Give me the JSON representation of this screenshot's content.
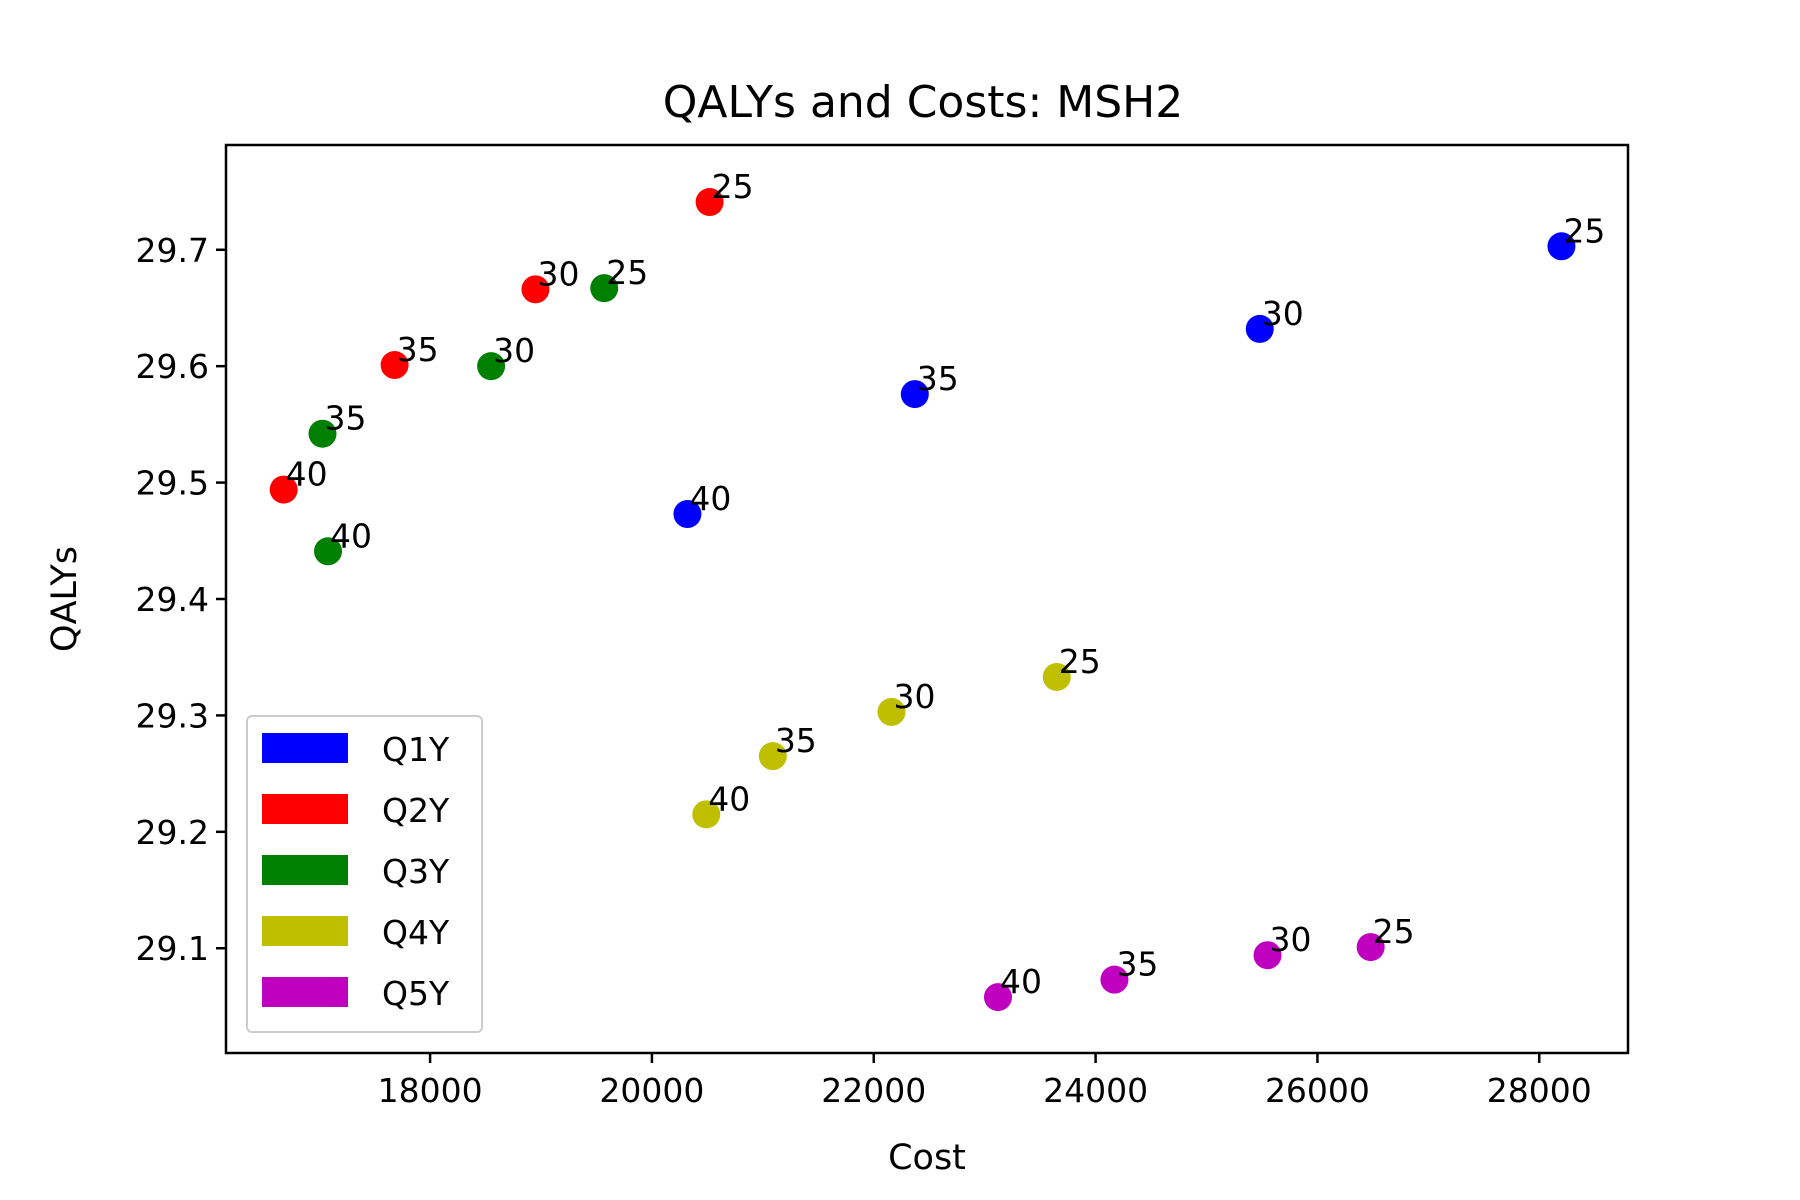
{
  "chart_data": {
    "type": "scatter",
    "title": "QALYs and Costs: MSH2",
    "xlabel": "Cost",
    "ylabel": "QALYs",
    "xlim": [
      16160,
      28800
    ],
    "ylim": [
      29.01,
      29.79
    ],
    "xticks": [
      {
        "value": 18000,
        "label": "18000"
      },
      {
        "value": 20000,
        "label": "20000"
      },
      {
        "value": 22000,
        "label": "22000"
      },
      {
        "value": 24000,
        "label": "24000"
      },
      {
        "value": 26000,
        "label": "26000"
      },
      {
        "value": 28000,
        "label": "28000"
      }
    ],
    "yticks": [
      {
        "value": 29.1,
        "label": "29.1"
      },
      {
        "value": 29.2,
        "label": "29.2"
      },
      {
        "value": 29.3,
        "label": "29.3"
      },
      {
        "value": 29.4,
        "label": "29.4"
      },
      {
        "value": 29.5,
        "label": "29.5"
      },
      {
        "value": 29.6,
        "label": "29.6"
      },
      {
        "value": 29.7,
        "label": "29.7"
      }
    ],
    "grid": false,
    "legend_position": "lower-left",
    "series": [
      {
        "name": "Q1Y",
        "color": "#0000ff",
        "points": [
          {
            "x": 28200,
            "y": 29.703,
            "label": "25"
          },
          {
            "x": 25480,
            "y": 29.632,
            "label": "30"
          },
          {
            "x": 22370,
            "y": 29.576,
            "label": "35"
          },
          {
            "x": 20320,
            "y": 29.473,
            "label": "40"
          }
        ]
      },
      {
        "name": "Q2Y",
        "color": "#ff0000",
        "points": [
          {
            "x": 20520,
            "y": 29.741,
            "label": "25"
          },
          {
            "x": 18950,
            "y": 29.666,
            "label": "30"
          },
          {
            "x": 17680,
            "y": 29.601,
            "label": "35"
          },
          {
            "x": 16680,
            "y": 29.494,
            "label": "40"
          }
        ]
      },
      {
        "name": "Q3Y",
        "color": "#008000",
        "points": [
          {
            "x": 19570,
            "y": 29.667,
            "label": "25"
          },
          {
            "x": 18550,
            "y": 29.6,
            "label": "30"
          },
          {
            "x": 17030,
            "y": 29.542,
            "label": "35"
          },
          {
            "x": 17080,
            "y": 29.441,
            "label": "40"
          }
        ]
      },
      {
        "name": "Q4Y",
        "color": "#bfbf00",
        "points": [
          {
            "x": 23650,
            "y": 29.333,
            "label": "25"
          },
          {
            "x": 22160,
            "y": 29.303,
            "label": "30"
          },
          {
            "x": 21090,
            "y": 29.265,
            "label": "35"
          },
          {
            "x": 20490,
            "y": 29.215,
            "label": "40"
          }
        ]
      },
      {
        "name": "Q5Y",
        "color": "#bf00bf",
        "points": [
          {
            "x": 26480,
            "y": 29.101,
            "label": "25"
          },
          {
            "x": 25550,
            "y": 29.094,
            "label": "30"
          },
          {
            "x": 24170,
            "y": 29.073,
            "label": "35"
          },
          {
            "x": 23120,
            "y": 29.058,
            "label": "40"
          }
        ]
      }
    ]
  }
}
